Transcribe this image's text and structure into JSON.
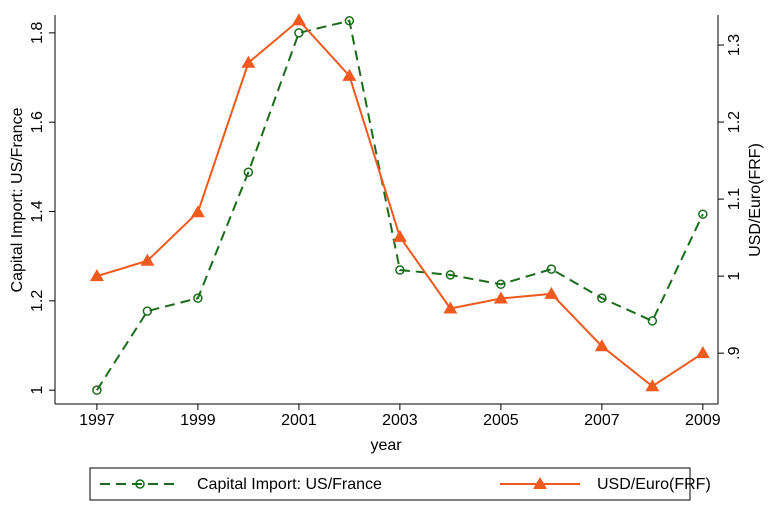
{
  "chart_data": {
    "type": "line",
    "x": [
      1997,
      1998,
      1999,
      2000,
      2001,
      2002,
      2003,
      2004,
      2005,
      2006,
      2007,
      2008,
      2009
    ],
    "xlabel": "year",
    "ylabel": "Capital Import: US/France",
    "y2label": "USD/Euro(FRF)",
    "xlim": [
      1996.17,
      2009.3
    ],
    "xticks": [
      1997,
      1999,
      2001,
      2003,
      2005,
      2007,
      2009
    ],
    "ylim": [
      0.969,
      1.84
    ],
    "yticks": [
      1,
      1.2,
      1.4,
      1.6,
      1.8
    ],
    "y2lim": [
      0.834,
      1.339
    ],
    "y2ticks": [
      {
        "value": 0.9,
        "label": ".9"
      },
      1,
      1.1,
      1.2,
      1.3
    ],
    "series": [
      {
        "name": "Capital Import: US/France",
        "color": "#1a6b1a",
        "marker": "circle",
        "dash": true,
        "values": [
          1.0,
          1.177,
          1.206,
          1.488,
          1.8,
          1.827,
          1.269,
          1.258,
          1.237,
          1.271,
          1.206,
          1.155,
          1.394
        ]
      },
      {
        "name": "USD/Euro(FRF)",
        "color": "#f05a1e",
        "marker": "triangle",
        "dash": false,
        "axis": "y2",
        "values": [
          1.0,
          1.02,
          1.083,
          1.277,
          1.332,
          1.26,
          1.051,
          0.958,
          0.971,
          0.977,
          0.909,
          0.857,
          0.9
        ]
      }
    ]
  }
}
